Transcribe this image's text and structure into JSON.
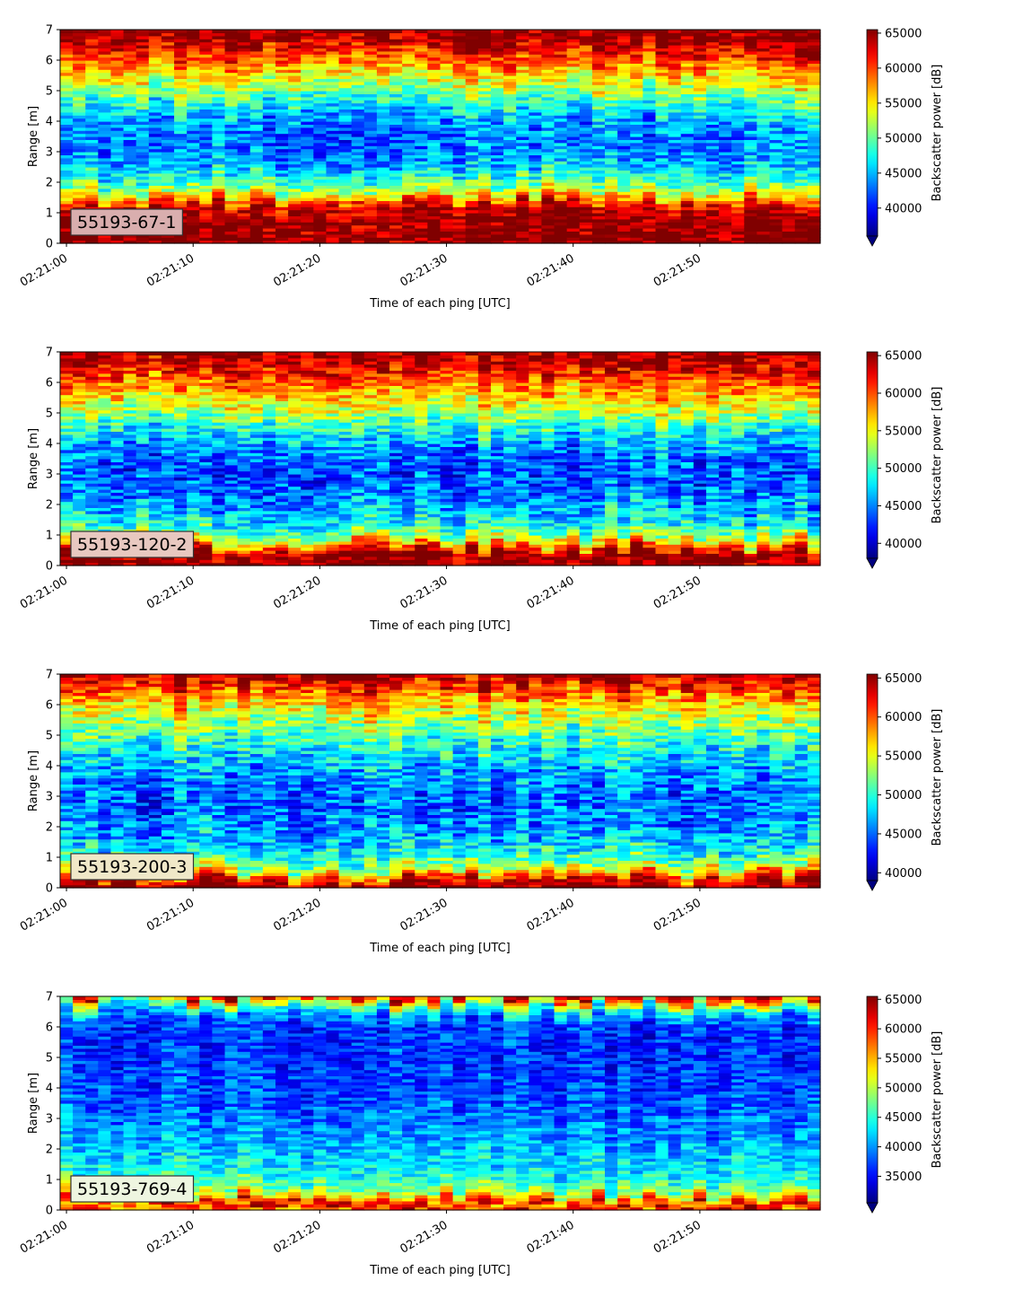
{
  "chart_data": [
    {
      "type": "heatmap",
      "label": "55193-67-1",
      "label_box_color": "#d9aeae",
      "xlabel": "Time of each ping [UTC]",
      "ylabel": "Range [m]",
      "x_ticks": [
        "02:21:00",
        "02:21:10",
        "02:21:20",
        "02:21:30",
        "02:21:40",
        "02:21:50"
      ],
      "x_range_seconds": [
        -0.5,
        59.5
      ],
      "y_ticks": [
        0,
        1,
        2,
        3,
        4,
        5,
        6,
        7
      ],
      "ylim": [
        0,
        7
      ],
      "colorbar": {
        "label": "Backscatter power [dB]",
        "ticks": [
          40000,
          45000,
          50000,
          55000,
          60000,
          65000
        ],
        "range": [
          36000,
          65500
        ],
        "extend": "min"
      },
      "profile": [
        {
          "range": 0.1,
          "value": 65500
        },
        {
          "range": 0.3,
          "value": 65500
        },
        {
          "range": 0.6,
          "value": 65500
        },
        {
          "range": 1.0,
          "value": 65000
        },
        {
          "range": 1.3,
          "value": 62000
        },
        {
          "range": 1.6,
          "value": 55000
        },
        {
          "range": 2.0,
          "value": 50000
        },
        {
          "range": 2.6,
          "value": 45000
        },
        {
          "range": 3.3,
          "value": 43000
        },
        {
          "range": 4.0,
          "value": 44000
        },
        {
          "range": 4.6,
          "value": 48000
        },
        {
          "range": 5.1,
          "value": 52000
        },
        {
          "range": 5.6,
          "value": 56000
        },
        {
          "range": 6.1,
          "value": 60000
        },
        {
          "range": 6.6,
          "value": 64000
        },
        {
          "range": 7.0,
          "value": 65500
        }
      ]
    },
    {
      "type": "heatmap",
      "label": "55193-120-2",
      "label_box_color": "#e8c8c0",
      "xlabel": "Time of each ping [UTC]",
      "ylabel": "Range [m]",
      "x_ticks": [
        "02:21:00",
        "02:21:10",
        "02:21:20",
        "02:21:30",
        "02:21:40",
        "02:21:50"
      ],
      "x_range_seconds": [
        -0.5,
        59.5
      ],
      "y_ticks": [
        0,
        1,
        2,
        3,
        4,
        5,
        6,
        7
      ],
      "ylim": [
        0,
        7
      ],
      "colorbar": {
        "label": "Backscatter power [dB]",
        "ticks": [
          40000,
          45000,
          50000,
          55000,
          60000,
          65000
        ],
        "range": [
          38000,
          65500
        ],
        "extend": "min"
      },
      "profile": [
        {
          "range": 0.1,
          "value": 65500
        },
        {
          "range": 0.4,
          "value": 65000
        },
        {
          "range": 0.7,
          "value": 58000
        },
        {
          "range": 1.0,
          "value": 52000
        },
        {
          "range": 1.5,
          "value": 48000
        },
        {
          "range": 2.2,
          "value": 45000
        },
        {
          "range": 3.0,
          "value": 43500
        },
        {
          "range": 3.8,
          "value": 45000
        },
        {
          "range": 4.5,
          "value": 49000
        },
        {
          "range": 5.0,
          "value": 53000
        },
        {
          "range": 5.6,
          "value": 57000
        },
        {
          "range": 6.2,
          "value": 61000
        },
        {
          "range": 6.7,
          "value": 64000
        },
        {
          "range": 7.0,
          "value": 65500
        }
      ]
    },
    {
      "type": "heatmap",
      "label": "55193-200-3",
      "label_box_color": "#f0e8c8",
      "xlabel": "Time of each ping [UTC]",
      "ylabel": "Range [m]",
      "x_ticks": [
        "02:21:00",
        "02:21:10",
        "02:21:20",
        "02:21:30",
        "02:21:40",
        "02:21:50"
      ],
      "x_range_seconds": [
        -0.5,
        59.5
      ],
      "y_ticks": [
        0,
        1,
        2,
        3,
        4,
        5,
        6,
        7
      ],
      "ylim": [
        0,
        7
      ],
      "colorbar": {
        "label": "Backscatter power [dB]",
        "ticks": [
          40000,
          45000,
          50000,
          55000,
          60000,
          65000
        ],
        "range": [
          39000,
          65500
        ],
        "extend": "min"
      },
      "profile": [
        {
          "range": 0.1,
          "value": 65500
        },
        {
          "range": 0.3,
          "value": 62000
        },
        {
          "range": 0.6,
          "value": 54000
        },
        {
          "range": 1.0,
          "value": 50000
        },
        {
          "range": 1.6,
          "value": 47000
        },
        {
          "range": 2.3,
          "value": 45500
        },
        {
          "range": 3.0,
          "value": 45000
        },
        {
          "range": 3.8,
          "value": 46500
        },
        {
          "range": 4.5,
          "value": 49000
        },
        {
          "range": 5.2,
          "value": 52000
        },
        {
          "range": 5.8,
          "value": 55000
        },
        {
          "range": 6.3,
          "value": 59000
        },
        {
          "range": 6.8,
          "value": 63000
        },
        {
          "range": 7.0,
          "value": 65000
        }
      ]
    },
    {
      "type": "heatmap",
      "label": "55193-769-4",
      "label_box_color": "#eef6e0",
      "xlabel": "Time of each ping [UTC]",
      "ylabel": "Range [m]",
      "x_ticks": [
        "02:21:00",
        "02:21:10",
        "02:21:20",
        "02:21:30",
        "02:21:40",
        "02:21:50"
      ],
      "x_range_seconds": [
        -0.5,
        59.5
      ],
      "y_ticks": [
        0,
        1,
        2,
        3,
        4,
        5,
        6,
        7
      ],
      "ylim": [
        0,
        7
      ],
      "colorbar": {
        "label": "Backscatter power [dB]",
        "ticks": [
          35000,
          40000,
          45000,
          50000,
          55000,
          60000,
          65000
        ],
        "range": [
          30500,
          65500
        ],
        "extend": "min"
      },
      "profile": [
        {
          "range": 0.05,
          "value": 56000
        },
        {
          "range": 0.15,
          "value": 65500
        },
        {
          "range": 0.3,
          "value": 60000
        },
        {
          "range": 0.5,
          "value": 52000
        },
        {
          "range": 0.8,
          "value": 47000
        },
        {
          "range": 1.2,
          "value": 44000
        },
        {
          "range": 1.8,
          "value": 42000
        },
        {
          "range": 2.5,
          "value": 40000
        },
        {
          "range": 3.5,
          "value": 38000
        },
        {
          "range": 4.5,
          "value": 37000
        },
        {
          "range": 5.5,
          "value": 36500
        },
        {
          "range": 6.2,
          "value": 37500
        },
        {
          "range": 6.6,
          "value": 44000
        },
        {
          "range": 6.9,
          "value": 55000
        },
        {
          "range": 7.0,
          "value": 62000
        }
      ]
    }
  ]
}
